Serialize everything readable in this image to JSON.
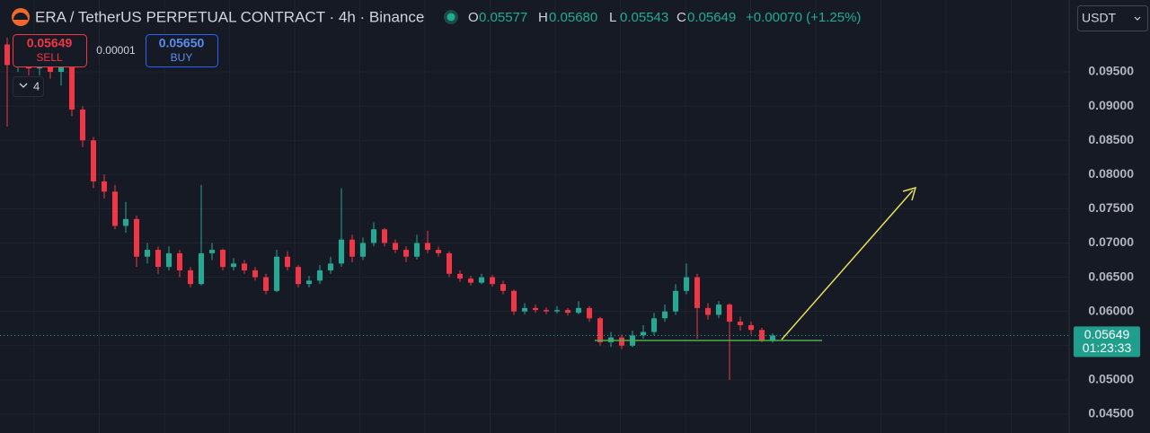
{
  "header": {
    "symbol_title": "ERA / TetherUS PERPETUAL CONTRACT · 4h · Binance",
    "ohlc": [
      {
        "label": "O",
        "value": "0.05577"
      },
      {
        "label": "H",
        "value": "0.05680"
      },
      {
        "label": "L",
        "value": "0.05543"
      },
      {
        "label": "C",
        "value": "0.05649"
      }
    ],
    "change": "+0.00070 (+1.25%)"
  },
  "order_panel": {
    "sell_price": "0.05649",
    "sell_label": "SELL",
    "spread": "0.00001",
    "buy_price": "0.05650",
    "buy_label": "BUY",
    "indicator_count": "4"
  },
  "currency_selector": "USDT",
  "chart_data": {
    "type": "candlestick",
    "open": [
      0.099,
      0.096,
      0.0985,
      0.0955,
      0.097,
      0.095,
      0.0965,
      0.0895,
      0.085,
      0.079,
      0.0775,
      0.0725,
      0.0735,
      0.068,
      0.069,
      0.0665,
      0.0685,
      0.066,
      0.064,
      0.0685,
      0.069,
      0.0665,
      0.067,
      0.066,
      0.065,
      0.063,
      0.068,
      0.0665,
      0.064,
      0.0645,
      0.066,
      0.067,
      0.0705,
      0.068,
      0.07,
      0.072,
      0.07,
      0.069,
      0.068,
      0.07,
      0.069,
      0.0685,
      0.0655,
      0.0648,
      0.0642,
      0.065,
      0.064,
      0.063,
      0.06,
      0.0605,
      0.0602,
      0.06,
      0.0602,
      0.0598,
      0.0605,
      0.059,
      0.0555,
      0.0562,
      0.055,
      0.0565,
      0.057,
      0.059,
      0.06,
      0.063,
      0.065,
      0.0605,
      0.0595,
      0.061,
      0.0585,
      0.058,
      0.0573,
      0.05577
    ],
    "high": [
      0.1,
      0.1,
      0.0995,
      0.098,
      0.0975,
      0.0972,
      0.0968,
      0.09,
      0.0855,
      0.08,
      0.0785,
      0.076,
      0.074,
      0.07,
      0.0695,
      0.0695,
      0.069,
      0.0665,
      0.0785,
      0.07,
      0.0692,
      0.0678,
      0.0675,
      0.0665,
      0.0655,
      0.069,
      0.0688,
      0.0668,
      0.0652,
      0.0668,
      0.068,
      0.078,
      0.0712,
      0.0708,
      0.073,
      0.0722,
      0.0705,
      0.0695,
      0.0712,
      0.0718,
      0.0695,
      0.0688,
      0.066,
      0.0652,
      0.0655,
      0.0653,
      0.0645,
      0.0632,
      0.0612,
      0.061,
      0.0606,
      0.0608,
      0.0605,
      0.0615,
      0.0608,
      0.0592,
      0.057,
      0.0566,
      0.0572,
      0.058,
      0.0598,
      0.061,
      0.064,
      0.067,
      0.0655,
      0.0612,
      0.0615,
      0.0612,
      0.0592,
      0.0585,
      0.0576,
      0.0568
    ],
    "low": [
      0.087,
      0.095,
      0.0945,
      0.0945,
      0.094,
      0.093,
      0.0885,
      0.084,
      0.078,
      0.0765,
      0.072,
      0.0715,
      0.0665,
      0.067,
      0.0655,
      0.066,
      0.065,
      0.0635,
      0.0638,
      0.0675,
      0.066,
      0.066,
      0.0655,
      0.0645,
      0.0625,
      0.0628,
      0.066,
      0.0635,
      0.0635,
      0.064,
      0.0655,
      0.0665,
      0.0672,
      0.0675,
      0.0695,
      0.0695,
      0.0685,
      0.0672,
      0.0676,
      0.0685,
      0.068,
      0.065,
      0.0643,
      0.0638,
      0.064,
      0.0636,
      0.0625,
      0.0595,
      0.0596,
      0.0598,
      0.0596,
      0.0597,
      0.0594,
      0.0596,
      0.0585,
      0.055,
      0.0548,
      0.0545,
      0.0548,
      0.056,
      0.0565,
      0.0585,
      0.0595,
      0.0625,
      0.056,
      0.0588,
      0.059,
      0.05,
      0.0572,
      0.0566,
      0.0555,
      0.05543
    ],
    "close": [
      0.096,
      0.0985,
      0.0955,
      0.097,
      0.095,
      0.0965,
      0.0895,
      0.085,
      0.079,
      0.0775,
      0.0725,
      0.0735,
      0.068,
      0.069,
      0.0665,
      0.0685,
      0.066,
      0.064,
      0.0685,
      0.069,
      0.0665,
      0.067,
      0.066,
      0.065,
      0.063,
      0.068,
      0.0665,
      0.064,
      0.0645,
      0.066,
      0.067,
      0.0705,
      0.068,
      0.07,
      0.072,
      0.07,
      0.069,
      0.068,
      0.07,
      0.069,
      0.0685,
      0.0655,
      0.0648,
      0.0642,
      0.065,
      0.064,
      0.063,
      0.06,
      0.0605,
      0.0602,
      0.06,
      0.0602,
      0.0598,
      0.0605,
      0.059,
      0.0555,
      0.0562,
      0.055,
      0.0565,
      0.057,
      0.059,
      0.06,
      0.063,
      0.065,
      0.0605,
      0.0595,
      0.061,
      0.0585,
      0.058,
      0.0573,
      0.0558,
      0.05649
    ],
    "up_color": "#22ab94",
    "down_color": "#f23645",
    "ylim": [
      0.04224,
      0.1055
    ],
    "yticks": [
      {
        "value": 0.045,
        "label": "0.04500"
      },
      {
        "value": 0.05,
        "label": "0.05000"
      },
      {
        "value": 0.055,
        "label": "0.05500"
      },
      {
        "value": 0.06,
        "label": "0.06000"
      },
      {
        "value": 0.065,
        "label": "0.06500"
      },
      {
        "value": 0.07,
        "label": "0.07000"
      },
      {
        "value": 0.075,
        "label": "0.07500"
      },
      {
        "value": 0.08,
        "label": "0.08000"
      },
      {
        "value": 0.085,
        "label": "0.08500"
      },
      {
        "value": 0.09,
        "label": "0.09000"
      },
      {
        "value": 0.095,
        "label": "0.09500"
      }
    ],
    "grid": true,
    "last_price": 0.05649,
    "countdown": "01:23:33"
  }
}
